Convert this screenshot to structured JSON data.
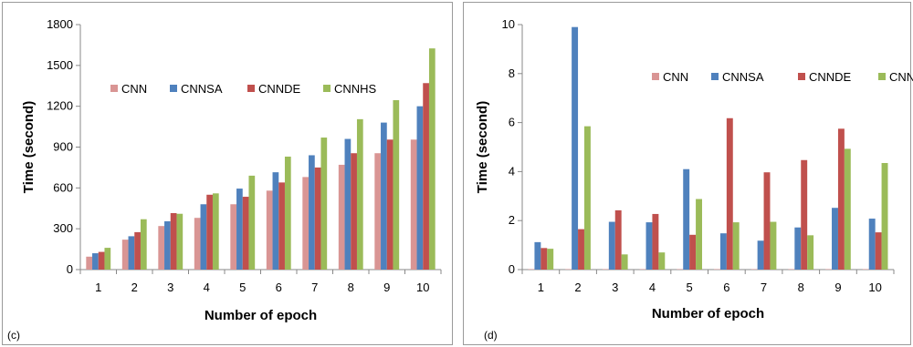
{
  "chart_data": [
    {
      "type": "bar",
      "panel_label": "(c)",
      "title": "",
      "xlabel": "Number of epoch",
      "ylabel": "Time (second)",
      "categories": [
        "1",
        "2",
        "3",
        "4",
        "5",
        "6",
        "7",
        "8",
        "9",
        "10"
      ],
      "ylim": [
        0,
        1800
      ],
      "yticks": [
        "0",
        "300",
        "600",
        "900",
        "1200",
        "1500",
        "1800"
      ],
      "grid": false,
      "legend_position": "top-left",
      "series": [
        {
          "name": "CNN",
          "color": "#d99594",
          "values": [
            95,
            220,
            320,
            380,
            480,
            580,
            680,
            770,
            855,
            955
          ]
        },
        {
          "name": "CNNSA",
          "color": "#4f81bd",
          "values": [
            120,
            245,
            355,
            480,
            595,
            715,
            840,
            960,
            1080,
            1200
          ]
        },
        {
          "name": "CNNDE",
          "color": "#c0504d",
          "values": [
            130,
            275,
            415,
            550,
            535,
            640,
            750,
            855,
            955,
            1370
          ]
        },
        {
          "name": "CNNHS",
          "color": "#9bbb59",
          "values": [
            160,
            370,
            410,
            560,
            690,
            830,
            970,
            1105,
            1245,
            1625
          ]
        }
      ]
    },
    {
      "type": "bar",
      "panel_label": "(d)",
      "title": "",
      "xlabel": "Number of epoch",
      "ylabel": "Time (second)",
      "categories": [
        "1",
        "2",
        "3",
        "4",
        "5",
        "6",
        "7",
        "8",
        "9",
        "10"
      ],
      "ylim": [
        0,
        10
      ],
      "yticks": [
        "0",
        "2",
        "4",
        "6",
        "8",
        "10"
      ],
      "grid": false,
      "legend_position": "top-right",
      "series": [
        {
          "name": "CNN",
          "color": "#d99594",
          "values": [
            0.02,
            0.02,
            0.02,
            0.02,
            0.02,
            0.02,
            0.02,
            0.02,
            0.02,
            0.02
          ]
        },
        {
          "name": "CNNSA",
          "color": "#4f81bd",
          "values": [
            1.12,
            9.9,
            1.95,
            1.93,
            4.1,
            1.48,
            1.18,
            1.72,
            2.52,
            2.08
          ]
        },
        {
          "name": "CNNDE",
          "color": "#c0504d",
          "values": [
            0.88,
            1.65,
            2.42,
            2.27,
            1.42,
            6.18,
            3.97,
            4.47,
            5.75,
            1.52
          ]
        },
        {
          "name": "CNNHS",
          "color": "#9bbb59",
          "values": [
            0.85,
            5.85,
            0.62,
            0.7,
            2.88,
            1.93,
            1.95,
            1.4,
            4.93,
            4.35
          ]
        }
      ]
    }
  ]
}
